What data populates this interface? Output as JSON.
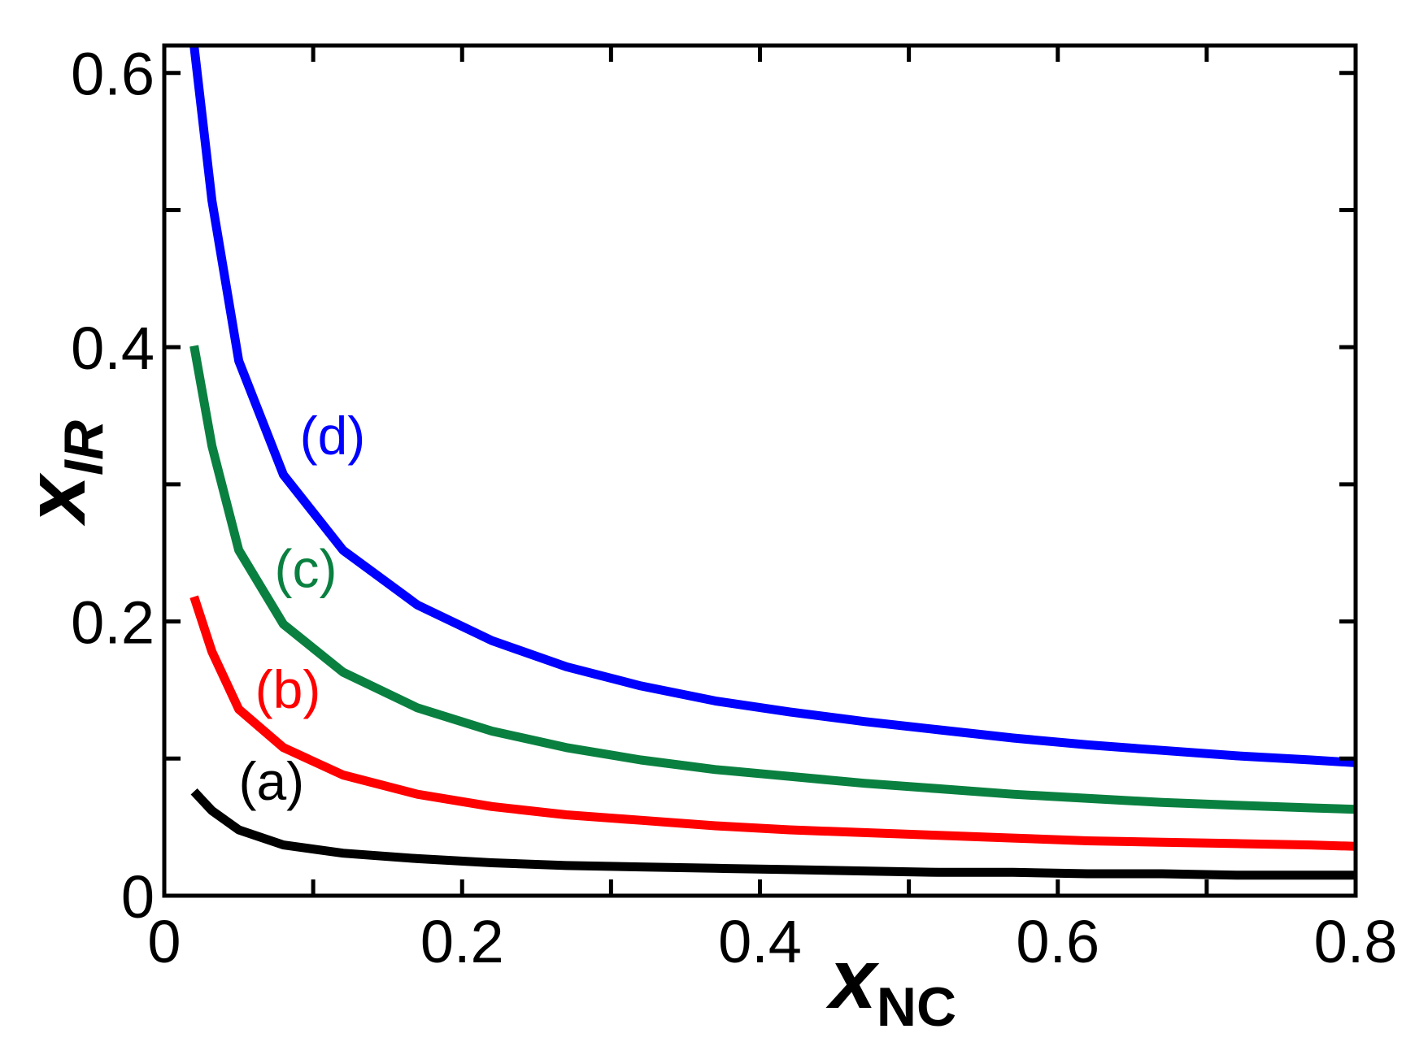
{
  "chart_data": {
    "type": "line",
    "xlabel": {
      "main": "x",
      "sub": "NC"
    },
    "ylabel": {
      "main": "x",
      "sub": "IR"
    },
    "xlim": [
      0,
      0.8
    ],
    "ylim": [
      0,
      0.62
    ],
    "x_ticks": [
      {
        "value": 0,
        "label": "0"
      },
      {
        "value": 0.2,
        "label": "0.2"
      },
      {
        "value": 0.4,
        "label": "0.4"
      },
      {
        "value": 0.6,
        "label": "0.6"
      },
      {
        "value": 0.8,
        "label": "0.8"
      }
    ],
    "y_ticks": [
      {
        "value": 0,
        "label": "0"
      },
      {
        "value": 0.2,
        "label": "0.2"
      },
      {
        "value": 0.4,
        "label": "0.4"
      },
      {
        "value": 0.6,
        "label": "0.6"
      }
    ],
    "x_minor_ticks": [
      0.1,
      0.3,
      0.5,
      0.7
    ],
    "y_minor_ticks": [
      0.1,
      0.3,
      0.5
    ],
    "grid": false,
    "legend": "none",
    "series": [
      {
        "label": "(a)",
        "color": "#000000",
        "label_at": [
          0.072,
          0.07
        ],
        "points": [
          [
            0.02,
            0.076
          ],
          [
            0.032,
            0.062
          ],
          [
            0.05,
            0.048
          ],
          [
            0.08,
            0.037
          ],
          [
            0.12,
            0.031
          ],
          [
            0.17,
            0.027
          ],
          [
            0.22,
            0.024
          ],
          [
            0.27,
            0.022
          ],
          [
            0.32,
            0.021
          ],
          [
            0.37,
            0.02
          ],
          [
            0.42,
            0.019
          ],
          [
            0.47,
            0.018
          ],
          [
            0.52,
            0.017
          ],
          [
            0.57,
            0.017
          ],
          [
            0.62,
            0.016
          ],
          [
            0.67,
            0.016
          ],
          [
            0.72,
            0.015
          ],
          [
            0.77,
            0.015
          ],
          [
            0.8,
            0.015
          ]
        ]
      },
      {
        "label": "(b)",
        "color": "#ff0000",
        "label_at": [
          0.083,
          0.137
        ],
        "points": [
          [
            0.02,
            0.218
          ],
          [
            0.032,
            0.178
          ],
          [
            0.05,
            0.136
          ],
          [
            0.08,
            0.108
          ],
          [
            0.12,
            0.088
          ],
          [
            0.17,
            0.074
          ],
          [
            0.22,
            0.065
          ],
          [
            0.27,
            0.059
          ],
          [
            0.32,
            0.055
          ],
          [
            0.37,
            0.051
          ],
          [
            0.42,
            0.048
          ],
          [
            0.47,
            0.046
          ],
          [
            0.52,
            0.044
          ],
          [
            0.57,
            0.042
          ],
          [
            0.62,
            0.04
          ],
          [
            0.67,
            0.039
          ],
          [
            0.72,
            0.038
          ],
          [
            0.77,
            0.037
          ],
          [
            0.8,
            0.036
          ]
        ]
      },
      {
        "label": "(c)",
        "color": "#0a8040",
        "label_at": [
          0.095,
          0.225
        ],
        "points": [
          [
            0.02,
            0.401
          ],
          [
            0.032,
            0.328
          ],
          [
            0.05,
            0.252
          ],
          [
            0.08,
            0.198
          ],
          [
            0.12,
            0.163
          ],
          [
            0.17,
            0.137
          ],
          [
            0.22,
            0.12
          ],
          [
            0.27,
            0.108
          ],
          [
            0.32,
            0.099
          ],
          [
            0.37,
            0.092
          ],
          [
            0.42,
            0.087
          ],
          [
            0.47,
            0.082
          ],
          [
            0.52,
            0.078
          ],
          [
            0.57,
            0.074
          ],
          [
            0.62,
            0.071
          ],
          [
            0.67,
            0.068
          ],
          [
            0.72,
            0.066
          ],
          [
            0.77,
            0.064
          ],
          [
            0.8,
            0.063
          ]
        ]
      },
      {
        "label": "(d)",
        "color": "#0000ff",
        "label_at": [
          0.113,
          0.322
        ],
        "points": [
          [
            0.02,
            0.62
          ],
          [
            0.032,
            0.507
          ],
          [
            0.05,
            0.39
          ],
          [
            0.08,
            0.307
          ],
          [
            0.12,
            0.252
          ],
          [
            0.17,
            0.212
          ],
          [
            0.22,
            0.186
          ],
          [
            0.27,
            0.167
          ],
          [
            0.32,
            0.153
          ],
          [
            0.37,
            0.142
          ],
          [
            0.42,
            0.134
          ],
          [
            0.47,
            0.127
          ],
          [
            0.52,
            0.121
          ],
          [
            0.57,
            0.115
          ],
          [
            0.62,
            0.11
          ],
          [
            0.67,
            0.106
          ],
          [
            0.72,
            0.102
          ],
          [
            0.77,
            0.099
          ],
          [
            0.8,
            0.097
          ]
        ]
      }
    ]
  }
}
